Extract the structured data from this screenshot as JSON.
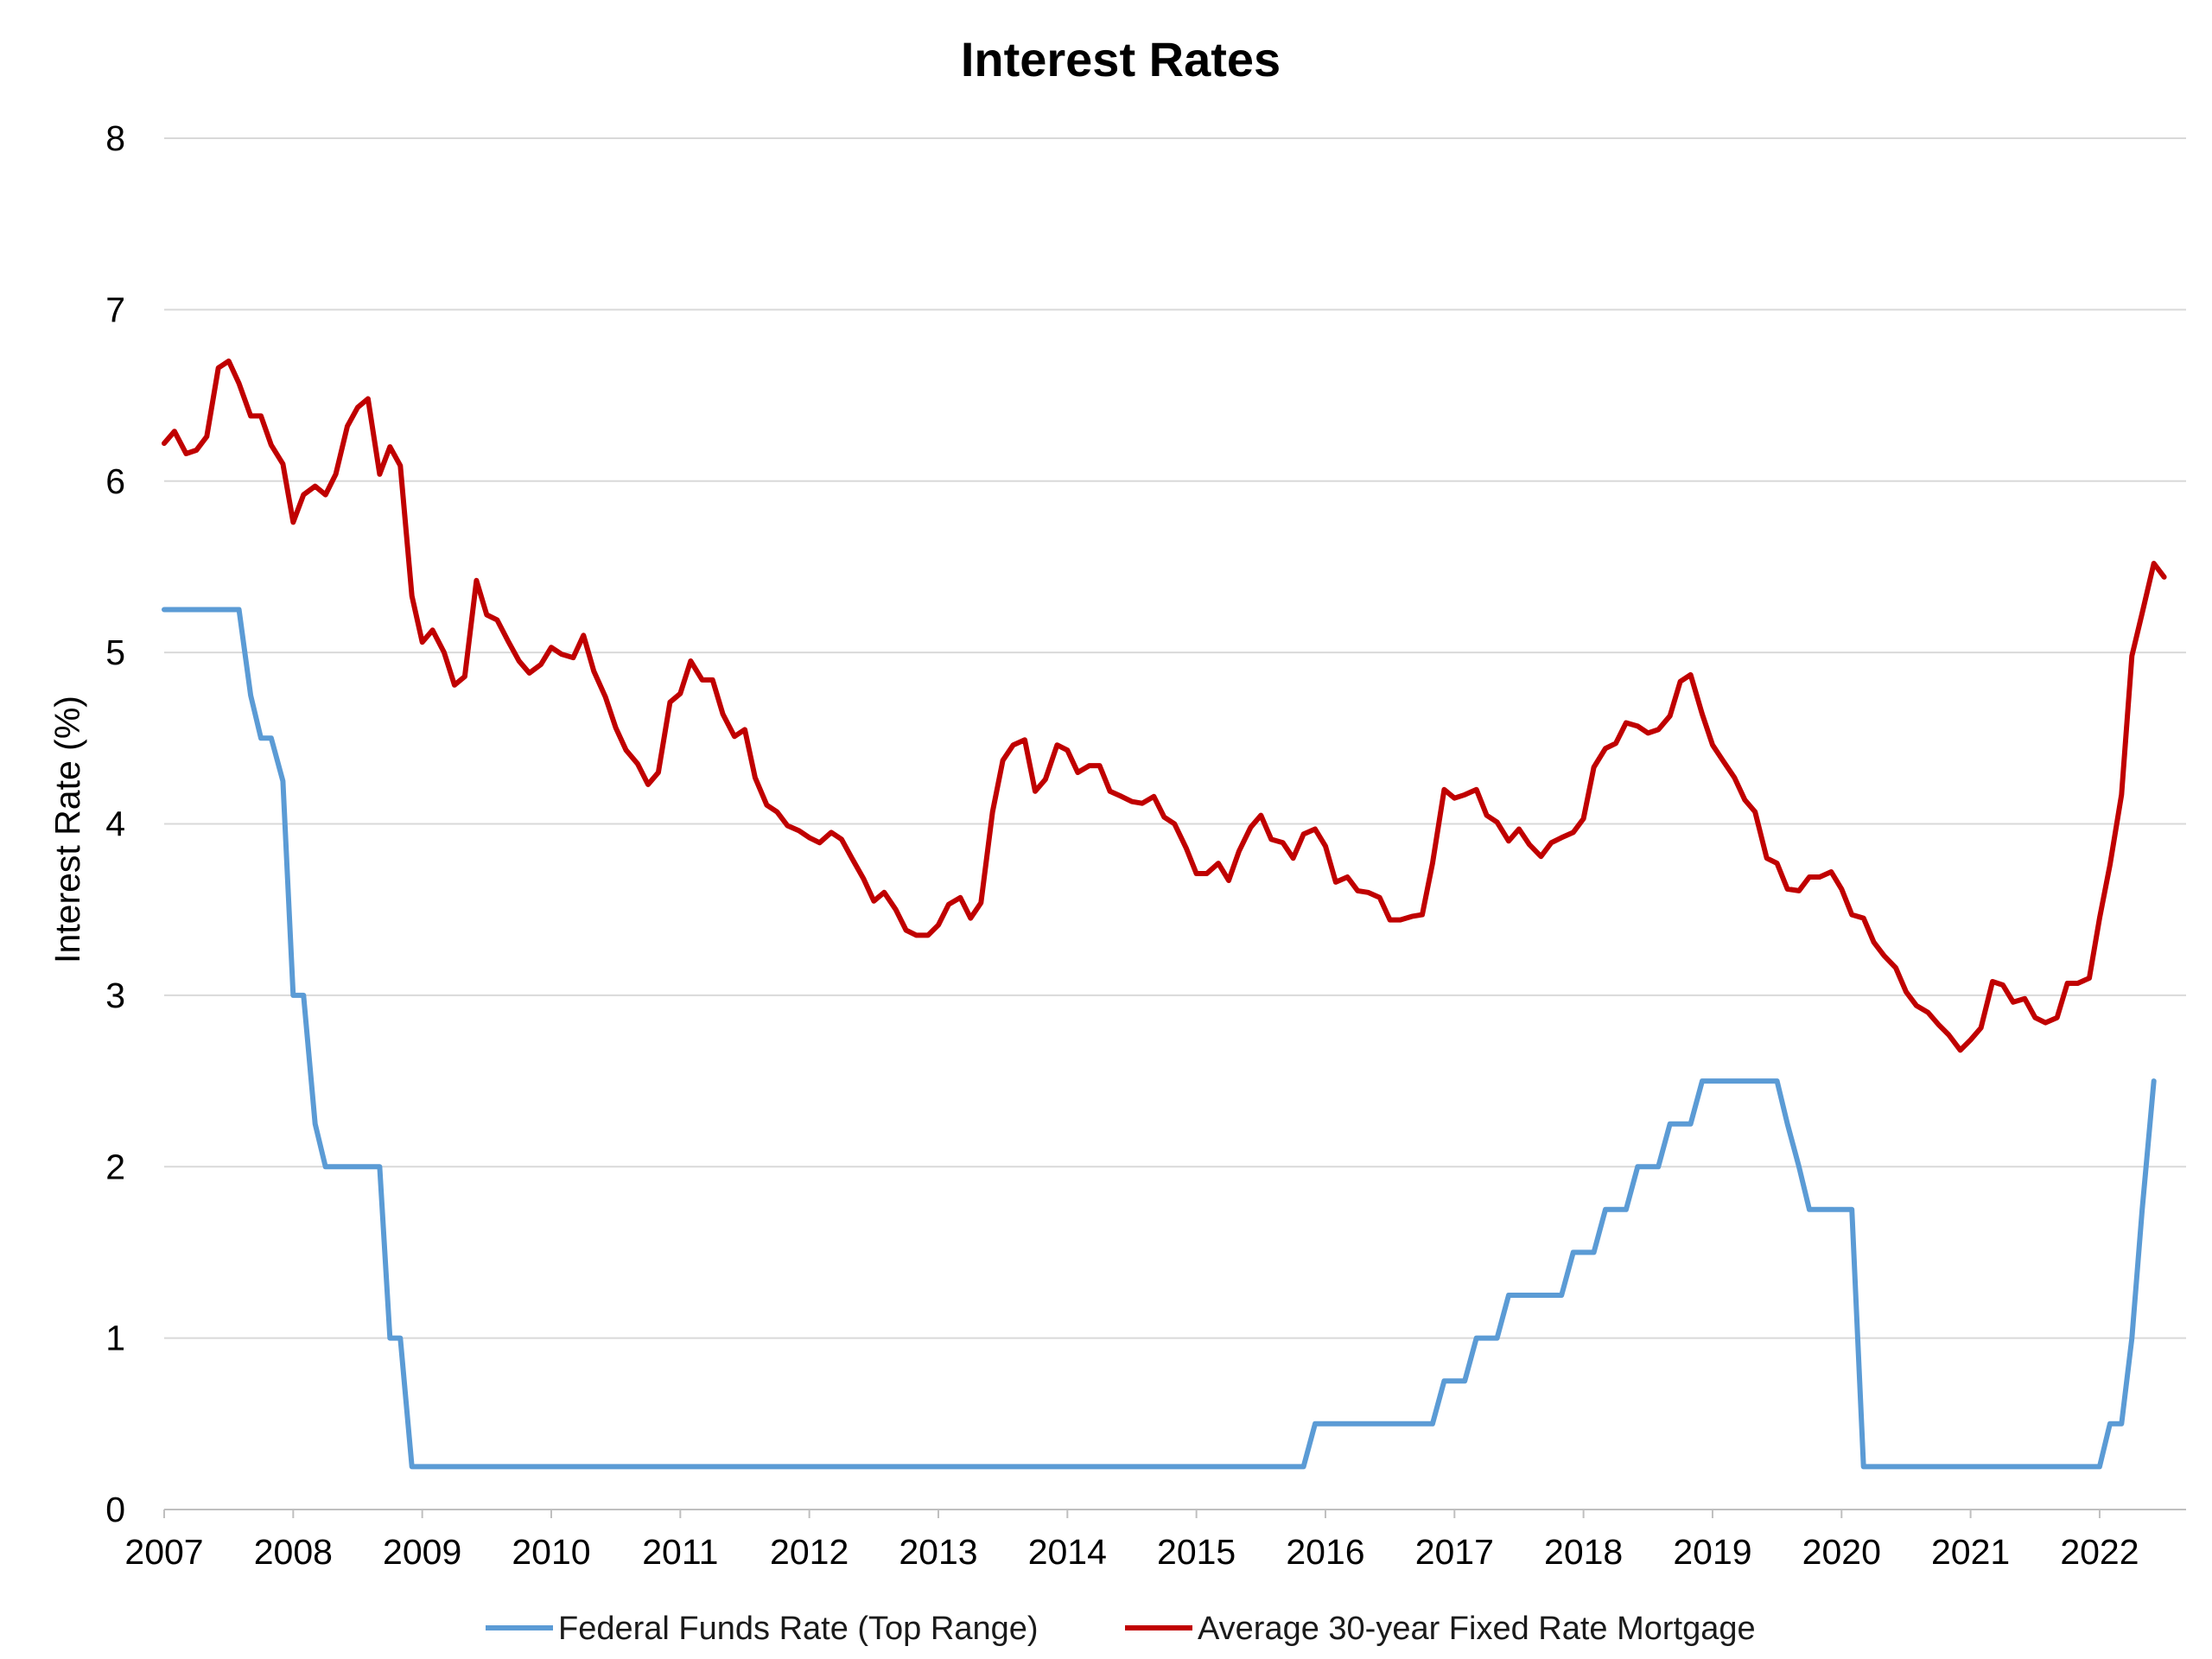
{
  "chart_data": {
    "type": "line",
    "title": "Interest Rates",
    "xlabel": "",
    "ylabel": "Interest Rate (%)",
    "xlim": [
      2007,
      2022.67
    ],
    "ylim": [
      0,
      8
    ],
    "y_ticks": [
      "0",
      "1",
      "2",
      "3",
      "4",
      "5",
      "6",
      "7",
      "8"
    ],
    "x_ticks": [
      "2007",
      "2008",
      "2009",
      "2010",
      "2011",
      "2012",
      "2013",
      "2014",
      "2015",
      "2016",
      "2017",
      "2018",
      "2019",
      "2020",
      "2021",
      "2022"
    ],
    "grid": "horizontal",
    "legend_position": "bottom",
    "series": [
      {
        "name": "Federal Funds Rate (Top Range)",
        "color": "#5b9bd5",
        "points": [
          [
            2007.0,
            5.25
          ],
          [
            2007.58,
            5.25
          ],
          [
            2007.67,
            4.75
          ],
          [
            2007.75,
            4.5
          ],
          [
            2007.83,
            4.5
          ],
          [
            2007.92,
            4.25
          ],
          [
            2008.0,
            3.0
          ],
          [
            2008.08,
            3.0
          ],
          [
            2008.17,
            2.25
          ],
          [
            2008.25,
            2.0
          ],
          [
            2008.42,
            2.0
          ],
          [
            2008.67,
            2.0
          ],
          [
            2008.75,
            1.0
          ],
          [
            2008.83,
            1.0
          ],
          [
            2008.92,
            0.25
          ],
          [
            2015.83,
            0.25
          ],
          [
            2015.92,
            0.5
          ],
          [
            2016.83,
            0.5
          ],
          [
            2016.92,
            0.75
          ],
          [
            2017.08,
            0.75
          ],
          [
            2017.17,
            1.0
          ],
          [
            2017.33,
            1.0
          ],
          [
            2017.42,
            1.25
          ],
          [
            2017.83,
            1.25
          ],
          [
            2017.92,
            1.5
          ],
          [
            2018.08,
            1.5
          ],
          [
            2018.17,
            1.75
          ],
          [
            2018.33,
            1.75
          ],
          [
            2018.42,
            2.0
          ],
          [
            2018.58,
            2.0
          ],
          [
            2018.67,
            2.25
          ],
          [
            2018.83,
            2.25
          ],
          [
            2018.92,
            2.5
          ],
          [
            2019.5,
            2.5
          ],
          [
            2019.58,
            2.25
          ],
          [
            2019.67,
            2.0
          ],
          [
            2019.75,
            1.75
          ],
          [
            2020.08,
            1.75
          ],
          [
            2020.17,
            0.25
          ],
          [
            2022.0,
            0.25
          ],
          [
            2022.08,
            0.5
          ],
          [
            2022.17,
            0.5
          ],
          [
            2022.25,
            1.0
          ],
          [
            2022.33,
            1.75
          ],
          [
            2022.42,
            2.5
          ]
        ]
      },
      {
        "name": "Average 30-year Fixed Rate Mortgage",
        "color": "#c00000",
        "points": [
          [
            2007.0,
            6.22
          ],
          [
            2007.08,
            6.29
          ],
          [
            2007.17,
            6.16
          ],
          [
            2007.25,
            6.18
          ],
          [
            2007.33,
            6.26
          ],
          [
            2007.42,
            6.66
          ],
          [
            2007.5,
            6.7
          ],
          [
            2007.58,
            6.57
          ],
          [
            2007.67,
            6.38
          ],
          [
            2007.75,
            6.38
          ],
          [
            2007.83,
            6.21
          ],
          [
            2007.92,
            6.1
          ],
          [
            2008.0,
            5.76
          ],
          [
            2008.08,
            5.92
          ],
          [
            2008.17,
            5.97
          ],
          [
            2008.25,
            5.92
          ],
          [
            2008.33,
            6.04
          ],
          [
            2008.42,
            6.32
          ],
          [
            2008.5,
            6.43
          ],
          [
            2008.58,
            6.48
          ],
          [
            2008.67,
            6.04
          ],
          [
            2008.75,
            6.2
          ],
          [
            2008.83,
            6.09
          ],
          [
            2008.92,
            5.33
          ],
          [
            2009.0,
            5.06
          ],
          [
            2009.08,
            5.13
          ],
          [
            2009.17,
            5.0
          ],
          [
            2009.25,
            4.81
          ],
          [
            2009.33,
            4.86
          ],
          [
            2009.42,
            5.42
          ],
          [
            2009.5,
            5.22
          ],
          [
            2009.58,
            5.19
          ],
          [
            2009.67,
            5.06
          ],
          [
            2009.75,
            4.95
          ],
          [
            2009.83,
            4.88
          ],
          [
            2009.92,
            4.93
          ],
          [
            2010.0,
            5.03
          ],
          [
            2010.08,
            4.99
          ],
          [
            2010.17,
            4.97
          ],
          [
            2010.25,
            5.1
          ],
          [
            2010.33,
            4.89
          ],
          [
            2010.42,
            4.74
          ],
          [
            2010.5,
            4.56
          ],
          [
            2010.58,
            4.43
          ],
          [
            2010.67,
            4.35
          ],
          [
            2010.75,
            4.23
          ],
          [
            2010.83,
            4.3
          ],
          [
            2010.92,
            4.71
          ],
          [
            2011.0,
            4.76
          ],
          [
            2011.08,
            4.95
          ],
          [
            2011.17,
            4.84
          ],
          [
            2011.25,
            4.84
          ],
          [
            2011.33,
            4.64
          ],
          [
            2011.42,
            4.51
          ],
          [
            2011.5,
            4.55
          ],
          [
            2011.58,
            4.27
          ],
          [
            2011.67,
            4.11
          ],
          [
            2011.75,
            4.07
          ],
          [
            2011.83,
            3.99
          ],
          [
            2011.92,
            3.96
          ],
          [
            2012.0,
            3.92
          ],
          [
            2012.08,
            3.89
          ],
          [
            2012.17,
            3.95
          ],
          [
            2012.25,
            3.91
          ],
          [
            2012.33,
            3.8
          ],
          [
            2012.42,
            3.68
          ],
          [
            2012.5,
            3.55
          ],
          [
            2012.58,
            3.6
          ],
          [
            2012.67,
            3.5
          ],
          [
            2012.75,
            3.38
          ],
          [
            2012.83,
            3.35
          ],
          [
            2012.92,
            3.35
          ],
          [
            2013.0,
            3.41
          ],
          [
            2013.08,
            3.53
          ],
          [
            2013.17,
            3.57
          ],
          [
            2013.25,
            3.45
          ],
          [
            2013.33,
            3.54
          ],
          [
            2013.42,
            4.07
          ],
          [
            2013.5,
            4.37
          ],
          [
            2013.58,
            4.46
          ],
          [
            2013.67,
            4.49
          ],
          [
            2013.75,
            4.19
          ],
          [
            2013.83,
            4.26
          ],
          [
            2013.92,
            4.46
          ],
          [
            2014.0,
            4.43
          ],
          [
            2014.08,
            4.3
          ],
          [
            2014.17,
            4.34
          ],
          [
            2014.25,
            4.34
          ],
          [
            2014.33,
            4.19
          ],
          [
            2014.42,
            4.16
          ],
          [
            2014.5,
            4.13
          ],
          [
            2014.58,
            4.12
          ],
          [
            2014.67,
            4.16
          ],
          [
            2014.75,
            4.04
          ],
          [
            2014.83,
            4.0
          ],
          [
            2014.92,
            3.86
          ],
          [
            2015.0,
            3.71
          ],
          [
            2015.08,
            3.71
          ],
          [
            2015.17,
            3.77
          ],
          [
            2015.25,
            3.67
          ],
          [
            2015.33,
            3.84
          ],
          [
            2015.42,
            3.98
          ],
          [
            2015.5,
            4.05
          ],
          [
            2015.58,
            3.91
          ],
          [
            2015.67,
            3.89
          ],
          [
            2015.75,
            3.8
          ],
          [
            2015.83,
            3.94
          ],
          [
            2015.92,
            3.97
          ],
          [
            2016.0,
            3.87
          ],
          [
            2016.08,
            3.66
          ],
          [
            2016.17,
            3.69
          ],
          [
            2016.25,
            3.61
          ],
          [
            2016.33,
            3.6
          ],
          [
            2016.42,
            3.57
          ],
          [
            2016.5,
            3.44
          ],
          [
            2016.58,
            3.44
          ],
          [
            2016.67,
            3.46
          ],
          [
            2016.75,
            3.47
          ],
          [
            2016.83,
            3.77
          ],
          [
            2016.92,
            4.2
          ],
          [
            2017.0,
            4.15
          ],
          [
            2017.08,
            4.17
          ],
          [
            2017.17,
            4.2
          ],
          [
            2017.25,
            4.05
          ],
          [
            2017.33,
            4.01
          ],
          [
            2017.42,
            3.9
          ],
          [
            2017.5,
            3.97
          ],
          [
            2017.58,
            3.88
          ],
          [
            2017.67,
            3.81
          ],
          [
            2017.75,
            3.89
          ],
          [
            2017.83,
            3.92
          ],
          [
            2017.92,
            3.95
          ],
          [
            2018.0,
            4.03
          ],
          [
            2018.08,
            4.33
          ],
          [
            2018.17,
            4.44
          ],
          [
            2018.25,
            4.47
          ],
          [
            2018.33,
            4.59
          ],
          [
            2018.42,
            4.57
          ],
          [
            2018.5,
            4.53
          ],
          [
            2018.58,
            4.55
          ],
          [
            2018.67,
            4.63
          ],
          [
            2018.75,
            4.83
          ],
          [
            2018.83,
            4.87
          ],
          [
            2018.92,
            4.64
          ],
          [
            2019.0,
            4.46
          ],
          [
            2019.08,
            4.37
          ],
          [
            2019.17,
            4.27
          ],
          [
            2019.25,
            4.14
          ],
          [
            2019.33,
            4.07
          ],
          [
            2019.42,
            3.8
          ],
          [
            2019.5,
            3.77
          ],
          [
            2019.58,
            3.62
          ],
          [
            2019.67,
            3.61
          ],
          [
            2019.75,
            3.69
          ],
          [
            2019.83,
            3.69
          ],
          [
            2019.92,
            3.72
          ],
          [
            2020.0,
            3.62
          ],
          [
            2020.08,
            3.47
          ],
          [
            2020.17,
            3.45
          ],
          [
            2020.25,
            3.31
          ],
          [
            2020.33,
            3.23
          ],
          [
            2020.42,
            3.16
          ],
          [
            2020.5,
            3.02
          ],
          [
            2020.58,
            2.94
          ],
          [
            2020.67,
            2.9
          ],
          [
            2020.75,
            2.83
          ],
          [
            2020.83,
            2.77
          ],
          [
            2020.92,
            2.68
          ],
          [
            2021.0,
            2.74
          ],
          [
            2021.08,
            2.81
          ],
          [
            2021.17,
            3.08
          ],
          [
            2021.25,
            3.06
          ],
          [
            2021.33,
            2.96
          ],
          [
            2021.42,
            2.98
          ],
          [
            2021.5,
            2.87
          ],
          [
            2021.58,
            2.84
          ],
          [
            2021.67,
            2.87
          ],
          [
            2021.75,
            3.07
          ],
          [
            2021.83,
            3.07
          ],
          [
            2021.92,
            3.1
          ],
          [
            2022.0,
            3.45
          ],
          [
            2022.08,
            3.76
          ],
          [
            2022.17,
            4.17
          ],
          [
            2022.25,
            4.98
          ],
          [
            2022.33,
            5.23
          ],
          [
            2022.42,
            5.52
          ],
          [
            2022.5,
            5.44
          ]
        ]
      }
    ]
  }
}
